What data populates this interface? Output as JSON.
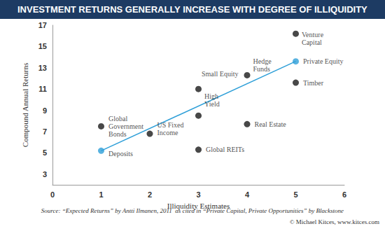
{
  "chart_data": {
    "type": "scatter",
    "title": "INVESTMENT RETURNS GENERALLY INCREASE WITH DEGREE OF ILLIQUIDITY",
    "x_label": "Illiquidity Estimates",
    "y_label": "Compound Annual Returns",
    "source": "Source: “Expected Returns” by Antti Ilmanen, 2011  as cited in “Private Capital, Private Opportunities” by Blackstone",
    "credit": "© Michael Kitces, www.kitces.com",
    "labels": [
      "Global\nGovernment\nBonds",
      "US Fixed\nIncome",
      "Deposits",
      "Small Equity",
      "High\nYield",
      "Global REITs",
      "Hedge\nFunds",
      "Real Estate",
      "Venture\nCapital",
      "Private Equity",
      "Timber"
    ],
    "x": [
      1,
      2,
      1,
      3,
      3,
      3,
      4,
      4,
      5,
      5,
      5
    ],
    "values": [
      7.5,
      6.8,
      5.2,
      11.0,
      8.5,
      5.3,
      12.3,
      7.7,
      16.2,
      13.6,
      11.6
    ],
    "colors": [
      "#1a1a1a",
      "#1a1a1a",
      "#2e9fd8",
      "#1a1a1a",
      "#1a1a1a",
      "#1a1a1a",
      "#1a1a1a",
      "#1a1a1a",
      "#1a1a1a",
      "#2e9fd8",
      "#1a1a1a"
    ],
    "trend_line": {
      "type": "line",
      "x": [
        1,
        5
      ],
      "values": [
        5.2,
        13.6
      ],
      "color": "#2e9fd8"
    },
    "xlim": [
      0,
      6
    ],
    "xticks": [
      0,
      1,
      2,
      3,
      4,
      5,
      6
    ],
    "ylim": [
      2,
      17
    ],
    "yticks": [
      3,
      5,
      7,
      9,
      11,
      13,
      15,
      17
    ],
    "grid": false
  }
}
